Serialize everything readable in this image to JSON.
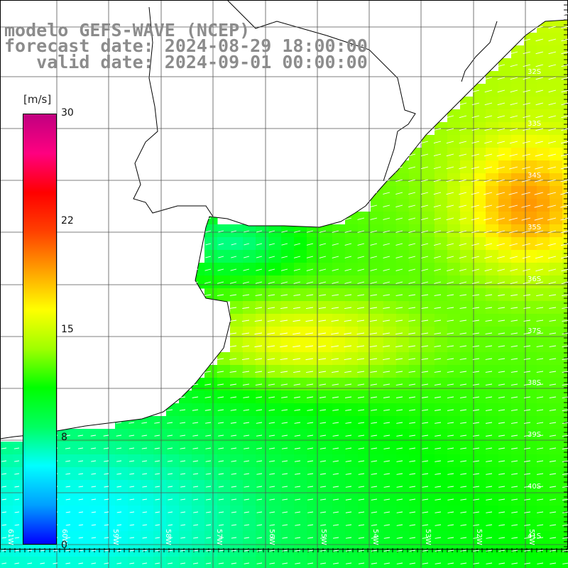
{
  "title": {
    "line1": "modelo GEFS-WAVE (NCEP)",
    "line2": "forecast date: 2024-08-29 18:00:00",
    "line3": "   valid date: 2024-09-01 00:00:00"
  },
  "colorbar": {
    "unit": "[m/s]",
    "ticks": [
      "30",
      "22",
      "15",
      "8",
      "0"
    ],
    "stops": [
      "#0000ff",
      "#00a0ff",
      "#00ffff",
      "#00ff60",
      "#00ff00",
      "#a0ff00",
      "#ffff00",
      "#ffa000",
      "#ff4000",
      "#ff0000",
      "#ff0080",
      "#c00080"
    ]
  },
  "lat_labels": [
    "32S",
    "33S",
    "34S",
    "35S",
    "36S",
    "37S",
    "38S",
    "39S",
    "40S",
    "41S"
  ],
  "lon_labels": [
    "61W",
    "60W",
    "59W",
    "58W",
    "57W",
    "56W",
    "55W",
    "54W",
    "53W",
    "52W",
    "51W"
  ],
  "field_description": "wind speed (m/s) with direction arrows"
}
